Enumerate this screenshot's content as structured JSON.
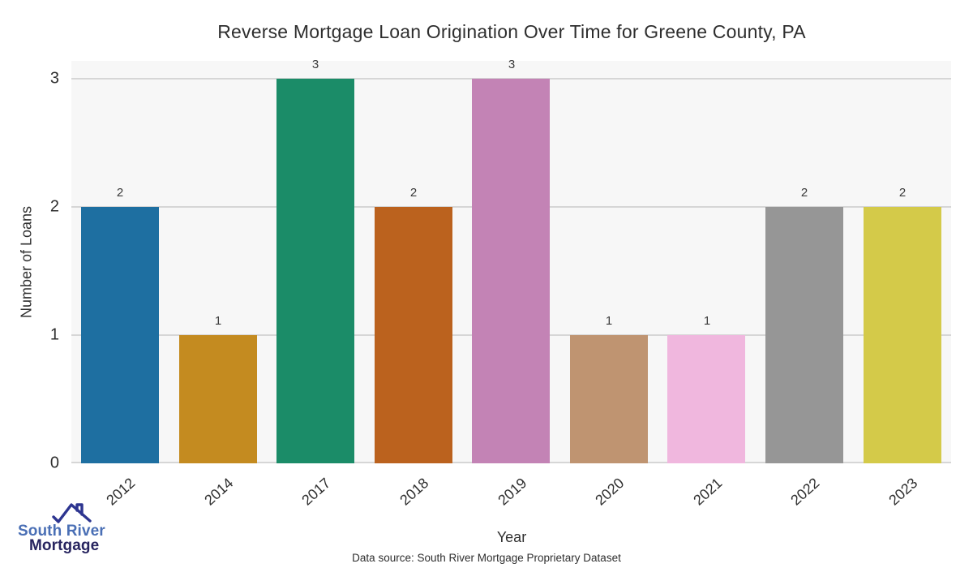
{
  "chart_data": {
    "type": "bar",
    "title": "Reverse Mortgage Loan Origination Over Time for Greene County, PA",
    "categories": [
      "2012",
      "2014",
      "2017",
      "2018",
      "2019",
      "2020",
      "2021",
      "2022",
      "2023"
    ],
    "values": [
      2,
      1,
      3,
      2,
      3,
      1,
      1,
      2,
      2
    ],
    "bar_colors": [
      "#1e6fa1",
      "#c48b20",
      "#1b8c68",
      "#bb621e",
      "#c383b5",
      "#bf9471",
      "#f0b7de",
      "#969696",
      "#d4ca49"
    ],
    "xlabel": "Year",
    "ylabel": "Number of Loans",
    "yticks": [
      0,
      1,
      2,
      3
    ],
    "ylim": [
      0,
      3.14
    ],
    "grid": true,
    "legend": "none",
    "plot_bg_color": "#f7f7f7",
    "grid_color": "#d6d6d6",
    "bar_width_fraction": 0.8
  },
  "logo": {
    "line1": "South River",
    "line2": "Mortgage",
    "line1_color": "#4a6fb5",
    "line2_color": "#27245f",
    "roof_color": "#2d3590"
  },
  "footer": {
    "source_text": "Data source: South River Mortgage Proprietary Dataset"
  }
}
